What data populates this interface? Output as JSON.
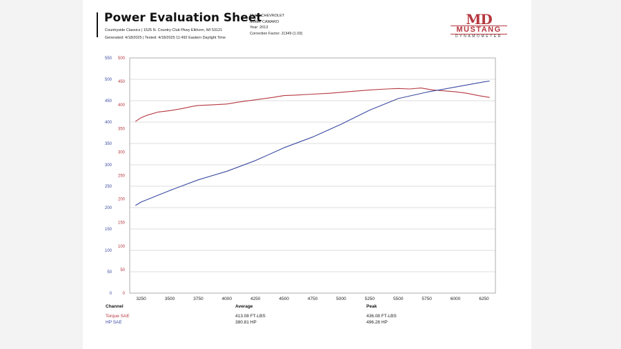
{
  "header": {
    "title": "Power Evaluation Sheet",
    "shop_line": "Countryside Classics | 1525 N. Country Club Pkwy Elkhorn, WI 53121",
    "generated_line": "Generated: 4/18/2025 | Tested: 4/18/2025 11:492 Eastern Daylight Time"
  },
  "vehicle": {
    "make": "Make: CHEVROLET",
    "model": "Model: CAMARO",
    "year": "Year: 2013",
    "correction": "Correction Factor: J1349 (1.03)"
  },
  "logo": {
    "md": "MD",
    "mustang": "MUSTANG",
    "dyno": "DYNAMOMETER"
  },
  "colors": {
    "torque": "#b5363f",
    "hp": "#3a48a0",
    "grid": "#bdbdbd"
  },
  "chart_data": {
    "type": "line",
    "title": "",
    "xlabel": "",
    "ylabel": "",
    "xlim": [
      3150,
      6350
    ],
    "x_ticks": [
      3250,
      3500,
      3750,
      4000,
      4250,
      4500,
      4750,
      5000,
      5250,
      5500,
      5750,
      6000,
      6250
    ],
    "y_ticks_hp": [
      0,
      50,
      100,
      150,
      200,
      250,
      300,
      350,
      400,
      450,
      500,
      550
    ],
    "y_ticks_torque": [
      0,
      50,
      100,
      150,
      200,
      250,
      300,
      350,
      400,
      450,
      500
    ],
    "ylim_hp": [
      0,
      550
    ],
    "ylim_torque": [
      0,
      500
    ],
    "grid": true,
    "series": [
      {
        "name": "Torque SAE",
        "axis": "torque",
        "x": [
          3200,
          3250,
          3300,
          3400,
          3500,
          3600,
          3700,
          3750,
          3850,
          4000,
          4100,
          4250,
          4400,
          4500,
          4600,
          4750,
          4900,
          5000,
          5100,
          5250,
          5400,
          5500,
          5600,
          5700,
          5800,
          5900,
          6000,
          6100,
          6200,
          6300
        ],
        "values": [
          365,
          373,
          378,
          385,
          388,
          392,
          397,
          399,
          400,
          402,
          406,
          411,
          416,
          420,
          421,
          423,
          425,
          427,
          429,
          432,
          434,
          435,
          434,
          436,
          432,
          430,
          428,
          425,
          420,
          416
        ]
      },
      {
        "name": "HP SAE",
        "axis": "hp",
        "x": [
          3200,
          3250,
          3500,
          3750,
          4000,
          4250,
          4500,
          4750,
          5000,
          5250,
          5500,
          5750,
          6000,
          6250,
          6300
        ],
        "values": [
          205,
          213,
          240,
          265,
          285,
          310,
          340,
          365,
          395,
          428,
          455,
          470,
          482,
          494,
          496
        ]
      }
    ]
  },
  "table": {
    "headers": [
      "Channel",
      "Average",
      "Peak"
    ],
    "rows": [
      {
        "channel": "Torque SAE",
        "average": "413.08 FT-LBS",
        "peak": "436.08 FT-LBS"
      },
      {
        "channel": "HP SAE",
        "average": "380.81 HP",
        "peak": "496.28 HP"
      }
    ]
  }
}
